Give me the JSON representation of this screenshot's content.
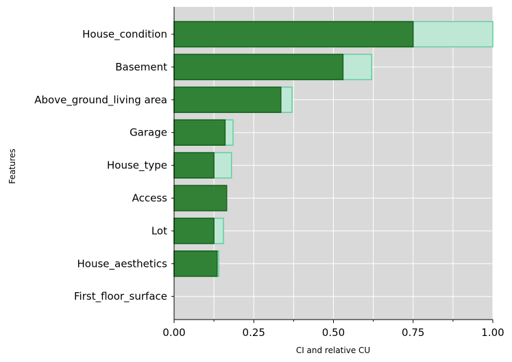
{
  "chart_data": {
    "type": "bar",
    "orientation": "horizontal",
    "title": "",
    "xlabel": "CI and relative CU",
    "ylabel": "Features",
    "xlim": [
      0,
      1
    ],
    "xticks": [
      "0.00",
      "0.25",
      "0.50",
      "0.75",
      "1.00"
    ],
    "grid": true,
    "legend": "none",
    "categories": [
      "House_condition",
      "Basement",
      "Above_ground_living area",
      "Garage",
      "House_type",
      "Access",
      "Lot",
      "House_aesthetics",
      "First_floor_surface"
    ],
    "series": [
      {
        "role": "light-outer",
        "values": [
          1.0,
          0.62,
          0.37,
          0.185,
          0.18,
          0.0,
          0.155,
          0.14,
          0.0
        ],
        "color": "#bfe7d6",
        "stroke": "#5fcf9f"
      },
      {
        "role": "dark-inner",
        "values": [
          0.75,
          0.53,
          0.335,
          0.16,
          0.125,
          0.165,
          0.125,
          0.135,
          0.0
        ],
        "color": "#2a7d2e",
        "stroke": "#0f5a12"
      }
    ],
    "colors": {
      "background": "#d9d9d9",
      "grid": "#ffffff"
    }
  }
}
